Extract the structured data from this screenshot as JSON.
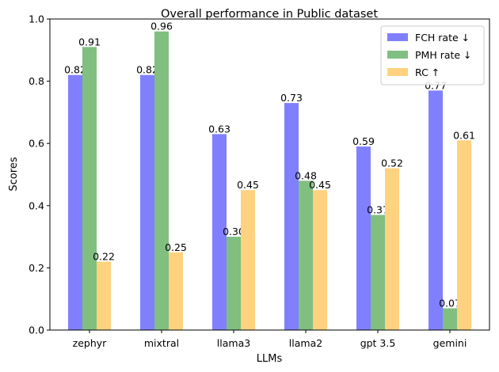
{
  "chart_data": {
    "type": "bar",
    "title": "Overall performance in Public dataset",
    "xlabel": "LLMs",
    "ylabel": "Scores",
    "ylim": [
      0,
      1.0
    ],
    "yticks": [
      "0.0",
      "0.2",
      "0.4",
      "0.6",
      "0.8",
      "1.0"
    ],
    "ytick_values": [
      0,
      0.2,
      0.4,
      0.6,
      0.8,
      1.0
    ],
    "categories": [
      "zephyr",
      "mixtral",
      "llama3",
      "llama2",
      "gpt 3.5",
      "gemini"
    ],
    "series": [
      {
        "name": "FCH rate ↓",
        "color": "#8080ff",
        "values": [
          0.82,
          0.82,
          0.63,
          0.73,
          0.59,
          0.77
        ]
      },
      {
        "name": "PMH rate ↓",
        "color": "#80bf80",
        "values": [
          0.91,
          0.96,
          0.3,
          0.48,
          0.37,
          0.07
        ]
      },
      {
        "name": "RC ↑",
        "color": "#ffd280",
        "values": [
          0.22,
          0.25,
          0.45,
          0.45,
          0.52,
          0.61
        ]
      }
    ],
    "data_labels": [
      [
        "0.82",
        "0.82",
        "0.63",
        "0.73",
        "0.59",
        "0.77"
      ],
      [
        "0.91",
        "0.96",
        "0.30",
        "0.48",
        "0.37",
        "0.07"
      ],
      [
        "0.22",
        "0.25",
        "0.45",
        "0.45",
        "0.52",
        "0.61"
      ]
    ],
    "legend_position": "top-right",
    "grid": false
  }
}
